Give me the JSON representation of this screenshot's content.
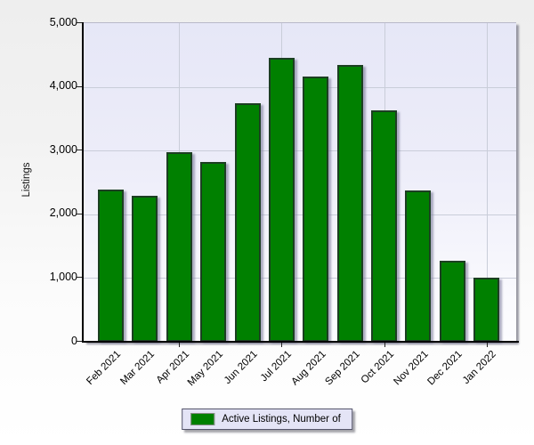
{
  "chart_data": {
    "type": "bar",
    "title": "",
    "xlabel": "",
    "ylabel": "Listings",
    "categories": [
      "Feb 2021",
      "Mar 2021",
      "Apr 2021",
      "May 2021",
      "Jun 2021",
      "Jul 2021",
      "Aug 2021",
      "Sep 2021",
      "Oct 2021",
      "Nov 2021",
      "Dec 2021",
      "Jan 2022"
    ],
    "series": [
      {
        "name": "Active Listings, Number of",
        "values": [
          2390,
          2290,
          2980,
          2820,
          3750,
          4450,
          4160,
          4350,
          3630,
          2370,
          1270,
          1010
        ],
        "color": "#008000"
      }
    ],
    "ylim": [
      0,
      5000
    ],
    "yticks": [
      0,
      1000,
      2000,
      3000,
      4000,
      5000
    ],
    "ytick_labels": [
      "0",
      "1,000",
      "2,000",
      "3,000",
      "4,000",
      "5,000"
    ],
    "grid": {
      "horizontal": true,
      "vertical_at_categories": [
        "Apr 2021",
        "Jul 2021",
        "Oct 2021",
        "Jan 2022"
      ]
    },
    "legend": {
      "position": "bottom-center",
      "label": "Active Listings, Number of"
    }
  },
  "colors": {
    "bar_fill": "#008000",
    "bar_border": "#1c3f22",
    "grid": "#c9cdd9",
    "axis": "#000000",
    "plot_bg_top": "#e6e7f7",
    "plot_bg_bottom": "#fdfdff",
    "page_bg_top": "#efefef",
    "page_bg_bottom": "#ffffff",
    "legend_bg": "#e4e4f6"
  }
}
